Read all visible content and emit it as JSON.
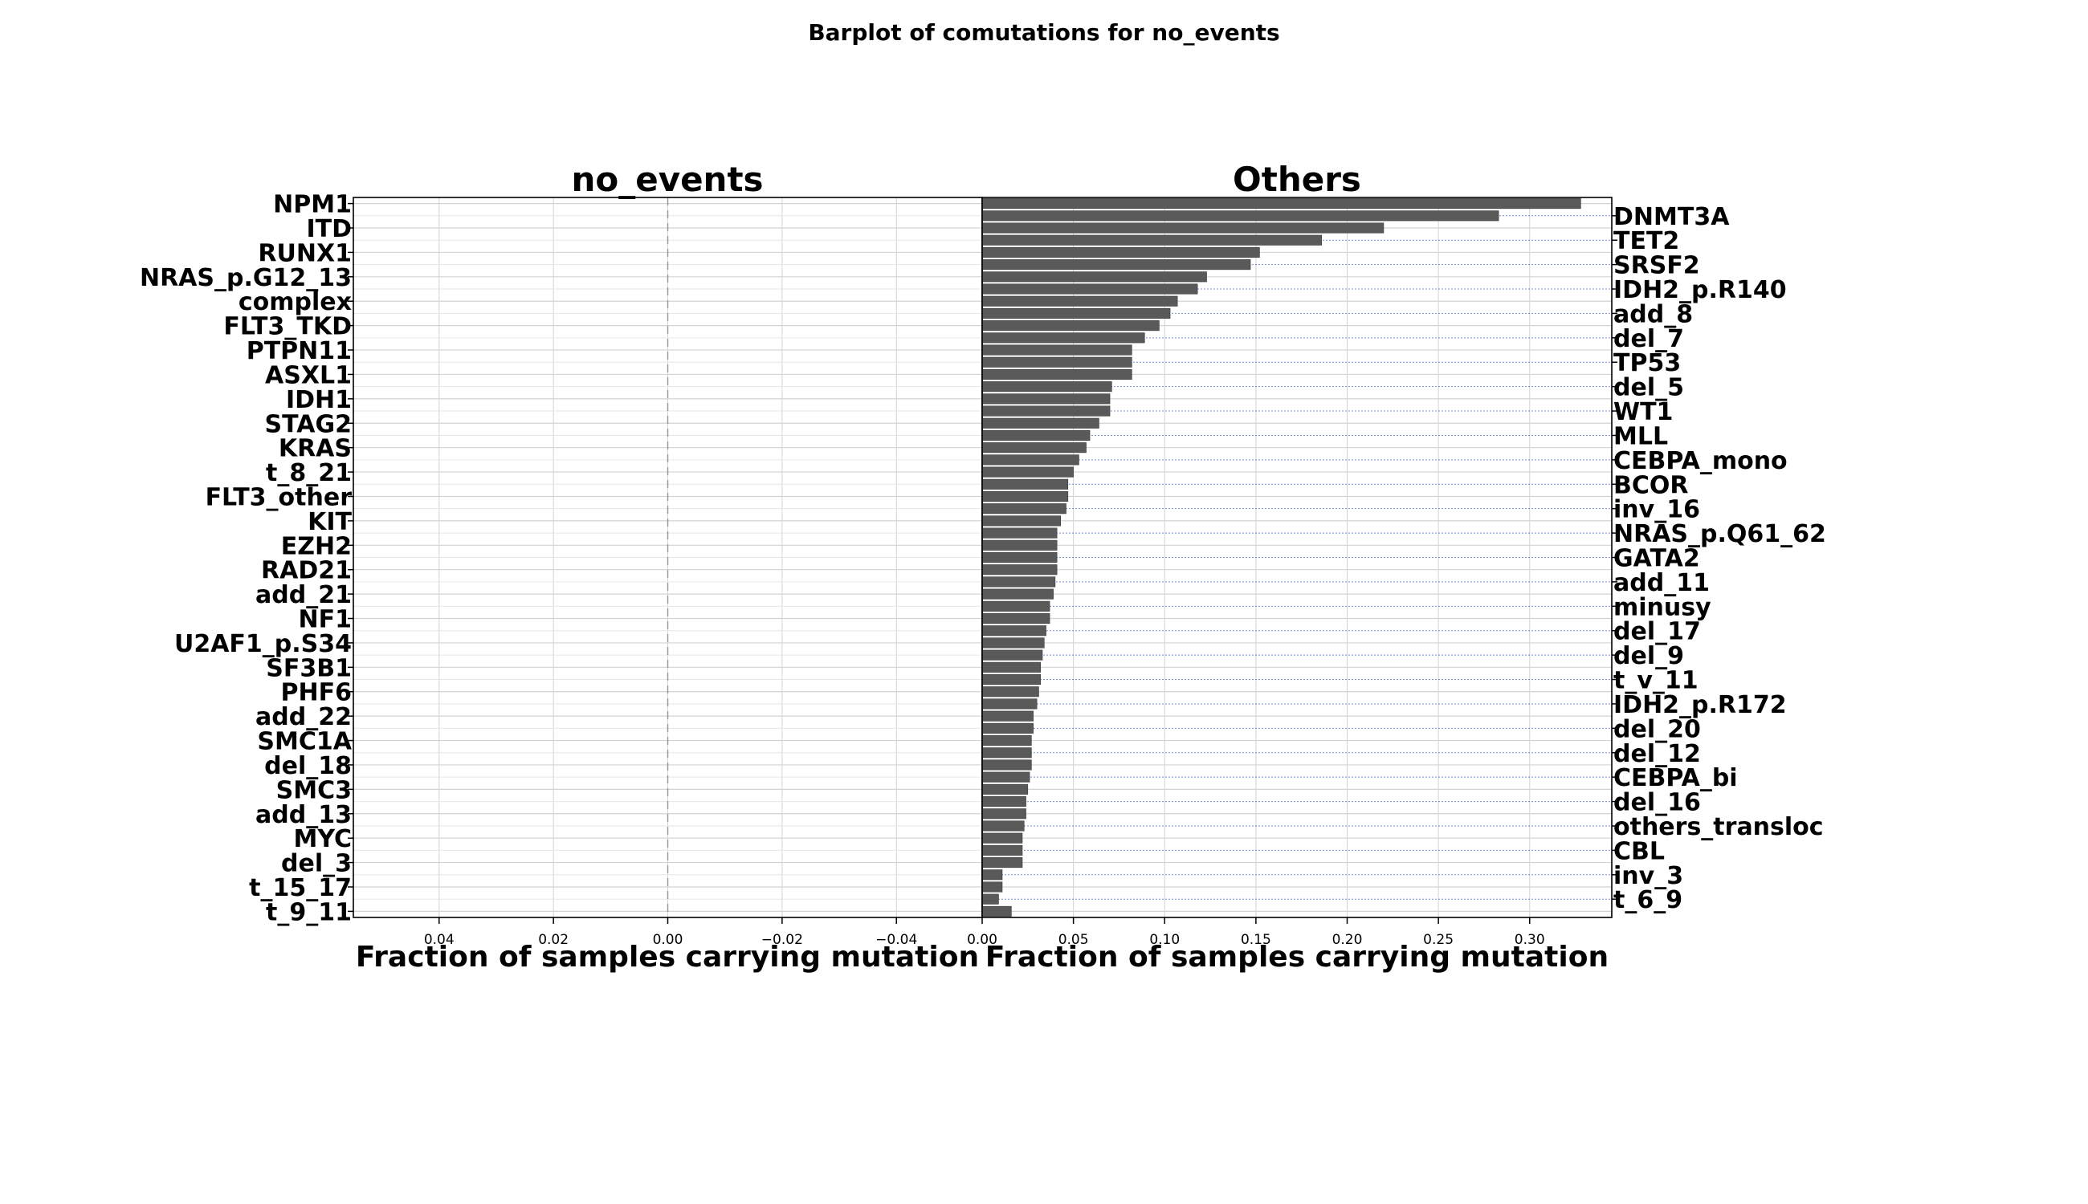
{
  "chart_data": {
    "type": "bar",
    "title": "Barplot  of comutations for no_events",
    "orientation": "horizontal",
    "xlabel": "Fraction of samples carrying mutation",
    "categories": [
      "NPM1",
      "DNMT3A",
      "ITD",
      "TET2",
      "RUNX1",
      "SRSF2",
      "NRAS_p.G12_13",
      "IDH2_p.R140",
      "complex",
      "add_8",
      "FLT3_TKD",
      "del_7",
      "PTPN11",
      "TP53",
      "ASXL1",
      "del_5",
      "IDH1",
      "WT1",
      "STAG2",
      "MLL",
      "KRAS",
      "CEBPA_mono",
      "t_8_21",
      "BCOR",
      "FLT3_other",
      "inv_16",
      "KIT",
      "NRAS_p.Q61_62",
      "EZH2",
      "GATA2",
      "RAD21",
      "add_11",
      "add_21",
      "minusy",
      "NF1",
      "del_17",
      "U2AF1_p.S34",
      "del_9",
      "SF3B1",
      "t_v_11",
      "PHF6",
      "IDH2_p.R172",
      "add_22",
      "del_20",
      "SMC1A",
      "del_12",
      "del_18",
      "CEBPA_bi",
      "SMC3",
      "del_16",
      "add_13",
      "others_transloc",
      "MYC",
      "CBL",
      "del_3",
      "inv_3",
      "t_15_17",
      "t_6_9",
      "t_9_11"
    ],
    "panels": [
      {
        "title": "no_events",
        "xlim": [
          0.055,
          -0.055
        ],
        "xticks": [
          "0.04",
          "0.02",
          "0.00",
          "−0.02",
          "−0.04"
        ],
        "xtick_values": [
          0.04,
          0.02,
          0.0,
          -0.02,
          -0.04
        ],
        "ticklabels_side": "left",
        "values": [
          0,
          0,
          0,
          0,
          0,
          0,
          0,
          0,
          0,
          0,
          0,
          0,
          0,
          0,
          0,
          0,
          0,
          0,
          0,
          0,
          0,
          0,
          0,
          0,
          0,
          0,
          0,
          0,
          0,
          0,
          0,
          0,
          0,
          0,
          0,
          0,
          0,
          0,
          0,
          0,
          0,
          0,
          0,
          0,
          0,
          0,
          0,
          0,
          0,
          0,
          0,
          0,
          0,
          0,
          0,
          0,
          0,
          0,
          0
        ]
      },
      {
        "title": "Others",
        "xlim": [
          0.0,
          0.345
        ],
        "xticks": [
          "0.00",
          "0.05",
          "0.10",
          "0.15",
          "0.20",
          "0.25",
          "0.30"
        ],
        "xtick_values": [
          0.0,
          0.05,
          0.1,
          0.15,
          0.2,
          0.25,
          0.3
        ],
        "ticklabels_side": "right",
        "values": [
          0.328,
          0.283,
          0.22,
          0.186,
          0.152,
          0.147,
          0.123,
          0.118,
          0.107,
          0.103,
          0.097,
          0.089,
          0.082,
          0.082,
          0.082,
          0.071,
          0.07,
          0.07,
          0.064,
          0.059,
          0.057,
          0.053,
          0.05,
          0.047,
          0.047,
          0.046,
          0.043,
          0.041,
          0.041,
          0.041,
          0.041,
          0.04,
          0.039,
          0.037,
          0.037,
          0.035,
          0.034,
          0.033,
          0.032,
          0.032,
          0.031,
          0.03,
          0.028,
          0.028,
          0.027,
          0.027,
          0.027,
          0.026,
          0.025,
          0.024,
          0.024,
          0.023,
          0.022,
          0.022,
          0.022,
          0.011,
          0.011,
          0.009,
          0.016
        ]
      }
    ],
    "grid": true,
    "colors": {
      "bar": "#595959",
      "grid": "#d3d3d3",
      "dotted_guides": "#4a6fd6",
      "zero_line": "#999999"
    }
  }
}
